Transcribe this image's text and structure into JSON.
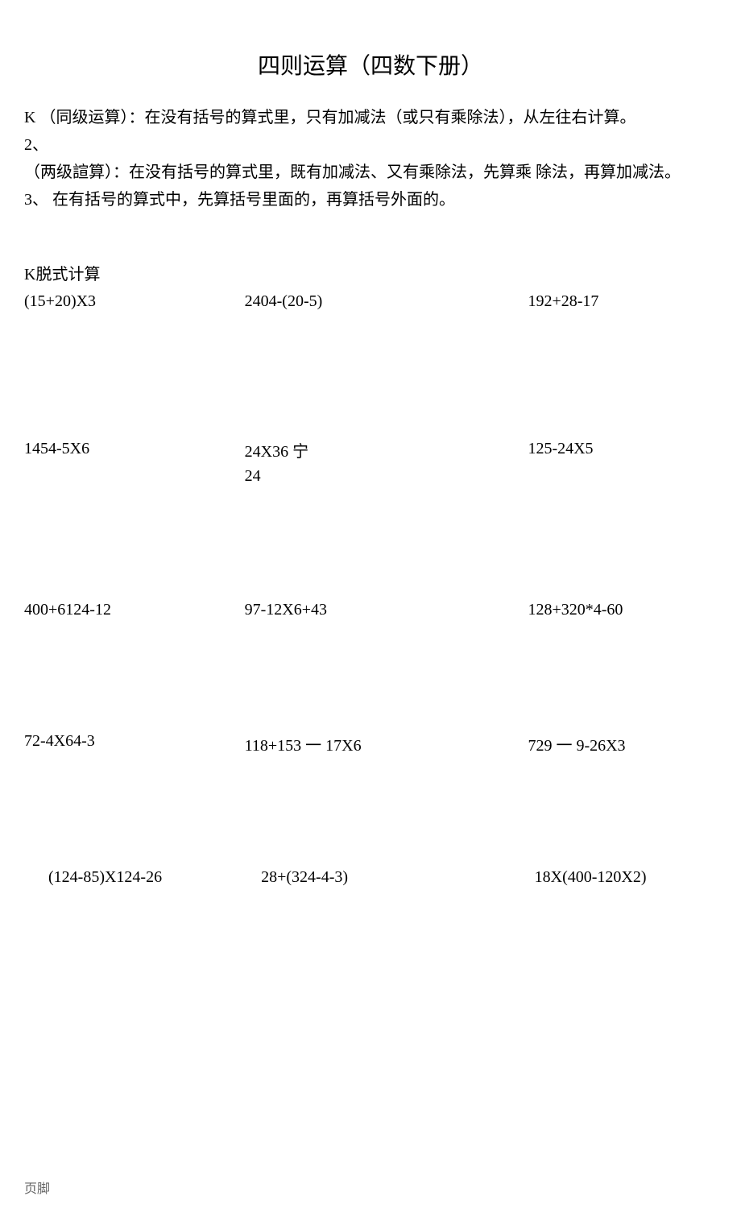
{
  "title": "四则运算（四数下册）",
  "rules": {
    "line1": "K （同级运算）：在没有括号的算式里，只有加减法（或只有乘除法），从左往右计算。",
    "line2": "2、",
    "line3": "   （两级諠算）：在没有括号的算式里，既有加减法、又有乘除法，先算乘 除法，再算加减法。",
    "line4": "3、 在有括号的算式中，先算括号里面的，再算括号外面的。"
  },
  "section_heading": "K脱式计算",
  "problems": [
    {
      "col1": "(15+20)X3",
      "col2": "2404-(20-5)",
      "col3": "192+28-17"
    },
    {
      "col1": "1454-5X6",
      "col2": "24X36 宁\n24",
      "col3": "125-24X5"
    },
    {
      "col1": "400+6124-12",
      "col2": "97-12X6+43",
      "col3": "128+320*4-60"
    },
    {
      "col1": "72-4X64-3",
      "col2": "118+153 一 17X6",
      "col3": "729 一 9-26X3"
    },
    {
      "col1": "(124-85)X124-26",
      "col2": "28+(324-4-3)",
      "col3": "18X(400-120X2)"
    }
  ],
  "footer": "页脚"
}
